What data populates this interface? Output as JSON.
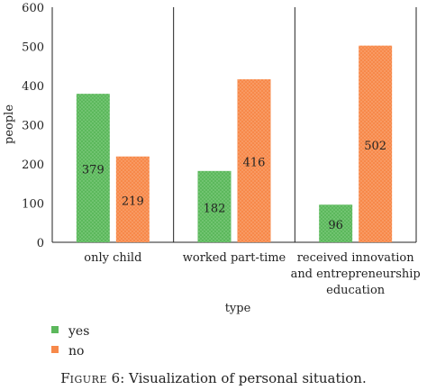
{
  "chart_data": {
    "type": "bar",
    "categories": [
      [
        "only child"
      ],
      [
        "worked part-time"
      ],
      [
        "received innovation",
        "and entrepreneurship",
        "education"
      ]
    ],
    "series": [
      {
        "name": "yes",
        "values": [
          379,
          182,
          96
        ],
        "color": "#5cb85c",
        "pattern": "dotted"
      },
      {
        "name": "no",
        "values": [
          219,
          416,
          502
        ],
        "color": "#f7894a",
        "pattern": "dotted"
      }
    ],
    "xlabel": "type",
    "ylabel": "people",
    "ylim": [
      0,
      600
    ],
    "yticks": [
      0,
      100,
      200,
      300,
      400,
      500,
      600
    ],
    "legend_position": "bottom-left",
    "category_separators": true
  },
  "caption": {
    "prefix_first": "F",
    "prefix_rest": "IGURE",
    "number": " 6: ",
    "text": "Visualization of personal situation."
  }
}
